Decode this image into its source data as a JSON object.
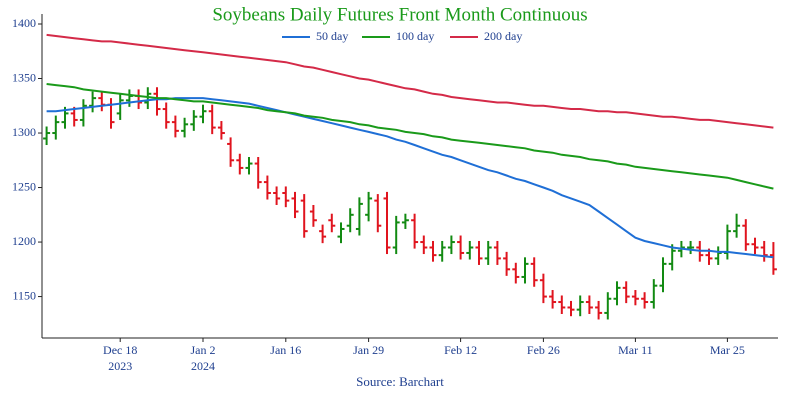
{
  "chart_data": {
    "type": "ohlc",
    "title": "Soybeans Daily Futures Front Month Continuous",
    "source": "Source: Barchart",
    "title_color": "#1a9a1a",
    "text_color": "#1f3f8f",
    "categories": [
      null,
      null,
      null,
      null,
      null,
      null,
      null,
      null,
      {
        "label": "Dec 18",
        "year": "2023"
      },
      null,
      null,
      null,
      null,
      null,
      null,
      null,
      null,
      {
        "label": "Jan 2",
        "year": "2024"
      },
      null,
      null,
      null,
      null,
      null,
      null,
      null,
      null,
      "Jan 16",
      null,
      null,
      null,
      null,
      null,
      null,
      null,
      null,
      "Jan 29",
      null,
      null,
      null,
      null,
      null,
      null,
      null,
      null,
      null,
      "Feb 12",
      null,
      null,
      null,
      null,
      null,
      null,
      null,
      null,
      "Feb 26",
      null,
      null,
      null,
      null,
      null,
      null,
      null,
      null,
      null,
      "Mar 11",
      null,
      null,
      null,
      null,
      null,
      null,
      null,
      null,
      null,
      "Mar 25",
      null,
      null,
      null,
      null,
      null
    ],
    "ohlc": {
      "up_color": "#128a12",
      "down_color": "#e0141e",
      "open": [
        1295,
        1300,
        1310,
        1318,
        1312,
        1325,
        1332,
        1326,
        1318,
        1330,
        1334,
        1328,
        1336,
        1322,
        1310,
        1302,
        1308,
        1315,
        1320,
        1305,
        1290,
        1275,
        1268,
        1272,
        1255,
        1245,
        1245,
        1240,
        1238,
        1228,
        1210,
        1220,
        1205,
        1215,
        1212,
        1225,
        1238,
        1240,
        1195,
        1218,
        1220,
        1200,
        1195,
        1188,
        1195,
        1200,
        1190,
        1195,
        1185,
        1195,
        1185,
        1175,
        1168,
        1180,
        1165,
        1150,
        1145,
        1140,
        1138,
        1145,
        1140,
        1135,
        1148,
        1158,
        1150,
        1148,
        1145,
        1160,
        1180,
        1192,
        1195,
        1195,
        1188,
        1185,
        1190,
        1210,
        1215,
        1198,
        1195,
        1188
      ],
      "high": [
        1306,
        1316,
        1324,
        1324,
        1331,
        1338,
        1338,
        1332,
        1336,
        1340,
        1340,
        1342,
        1342,
        1328,
        1316,
        1314,
        1321,
        1326,
        1326,
        1311,
        1296,
        1281,
        1278,
        1278,
        1261,
        1251,
        1251,
        1246,
        1244,
        1234,
        1216,
        1226,
        1218,
        1231,
        1241,
        1246,
        1244,
        1246,
        1224,
        1226,
        1226,
        1206,
        1201,
        1201,
        1206,
        1206,
        1201,
        1201,
        1201,
        1201,
        1191,
        1181,
        1186,
        1186,
        1171,
        1156,
        1151,
        1146,
        1151,
        1151,
        1146,
        1154,
        1164,
        1164,
        1156,
        1154,
        1166,
        1186,
        1198,
        1201,
        1201,
        1201,
        1194,
        1196,
        1216,
        1226,
        1221,
        1204,
        1201,
        1200
      ],
      "low": [
        1289,
        1294,
        1304,
        1306,
        1306,
        1319,
        1320,
        1304,
        1312,
        1324,
        1322,
        1322,
        1316,
        1304,
        1296,
        1296,
        1302,
        1309,
        1299,
        1294,
        1269,
        1262,
        1262,
        1249,
        1239,
        1234,
        1232,
        1222,
        1204,
        1214,
        1199,
        1209,
        1199,
        1209,
        1206,
        1219,
        1209,
        1189,
        1189,
        1212,
        1194,
        1189,
        1182,
        1182,
        1189,
        1184,
        1184,
        1179,
        1179,
        1179,
        1169,
        1162,
        1162,
        1159,
        1144,
        1139,
        1134,
        1132,
        1132,
        1134,
        1129,
        1129,
        1142,
        1144,
        1142,
        1139,
        1139,
        1154,
        1174,
        1186,
        1189,
        1182,
        1179,
        1179,
        1184,
        1204,
        1192,
        1189,
        1182,
        1170
      ],
      "close": [
        1300,
        1310,
        1318,
        1312,
        1325,
        1332,
        1326,
        1310,
        1330,
        1334,
        1328,
        1336,
        1322,
        1310,
        1302,
        1308,
        1315,
        1320,
        1305,
        1300,
        1275,
        1268,
        1272,
        1255,
        1245,
        1240,
        1238,
        1228,
        1210,
        1220,
        1205,
        1215,
        1212,
        1225,
        1235,
        1240,
        1215,
        1195,
        1218,
        1220,
        1200,
        1195,
        1188,
        1195,
        1200,
        1190,
        1195,
        1185,
        1195,
        1185,
        1175,
        1168,
        1180,
        1165,
        1150,
        1145,
        1140,
        1138,
        1145,
        1140,
        1135,
        1148,
        1158,
        1150,
        1148,
        1145,
        1160,
        1180,
        1192,
        1195,
        1195,
        1188,
        1185,
        1190,
        1210,
        1215,
        1198,
        1195,
        1188,
        1175
      ]
    },
    "series": [
      {
        "name": "50 day",
        "color": "#1f6fd6",
        "values": [
          1320,
          1320,
          1321,
          1322,
          1323,
          1324,
          1325,
          1326,
          1327,
          1328,
          1329,
          1330,
          1331,
          1331,
          1332,
          1332,
          1332,
          1332,
          1331,
          1330,
          1329,
          1328,
          1327,
          1325,
          1323,
          1321,
          1319,
          1317,
          1315,
          1313,
          1311,
          1309,
          1307,
          1305,
          1303,
          1301,
          1299,
          1297,
          1294,
          1292,
          1289,
          1286,
          1283,
          1280,
          1278,
          1275,
          1272,
          1269,
          1266,
          1264,
          1261,
          1258,
          1256,
          1253,
          1250,
          1247,
          1243,
          1240,
          1237,
          1234,
          1228,
          1222,
          1216,
          1210,
          1204,
          1201,
          1199,
          1197,
          1195,
          1194,
          1193,
          1192,
          1192,
          1191,
          1191,
          1190,
          1189,
          1188,
          1187,
          1186
        ]
      },
      {
        "name": "100 day",
        "color": "#1a9a1a",
        "values": [
          1345,
          1344,
          1343,
          1342,
          1340,
          1339,
          1338,
          1337,
          1336,
          1335,
          1334,
          1333,
          1332,
          1332,
          1331,
          1330,
          1329,
          1329,
          1328,
          1327,
          1326,
          1325,
          1324,
          1323,
          1321,
          1320,
          1319,
          1318,
          1316,
          1315,
          1314,
          1312,
          1311,
          1310,
          1308,
          1307,
          1305,
          1304,
          1303,
          1301,
          1300,
          1299,
          1297,
          1296,
          1294,
          1293,
          1292,
          1291,
          1290,
          1289,
          1288,
          1287,
          1286,
          1284,
          1283,
          1282,
          1280,
          1279,
          1278,
          1276,
          1275,
          1274,
          1272,
          1271,
          1269,
          1268,
          1267,
          1266,
          1265,
          1264,
          1263,
          1262,
          1261,
          1260,
          1259,
          1257,
          1255,
          1253,
          1251,
          1249
        ]
      },
      {
        "name": "200 day",
        "color": "#d42a48",
        "values": [
          1390,
          1389,
          1388,
          1387,
          1386,
          1385,
          1384,
          1384,
          1383,
          1382,
          1381,
          1380,
          1379,
          1378,
          1377,
          1376,
          1375,
          1374,
          1373,
          1372,
          1371,
          1370,
          1369,
          1368,
          1367,
          1366,
          1365,
          1363,
          1361,
          1360,
          1358,
          1356,
          1354,
          1352,
          1350,
          1349,
          1347,
          1345,
          1343,
          1341,
          1340,
          1338,
          1336,
          1335,
          1333,
          1332,
          1331,
          1330,
          1329,
          1328,
          1328,
          1327,
          1326,
          1325,
          1325,
          1324,
          1323,
          1322,
          1322,
          1321,
          1320,
          1320,
          1319,
          1319,
          1318,
          1317,
          1316,
          1315,
          1315,
          1314,
          1313,
          1312,
          1312,
          1311,
          1310,
          1309,
          1308,
          1307,
          1306,
          1305
        ]
      }
    ],
    "ylim": [
      1112,
      1400
    ],
    "yticks": [
      1150,
      1200,
      1250,
      1300,
      1350,
      1400
    ],
    "legend": "top",
    "grid": false
  }
}
